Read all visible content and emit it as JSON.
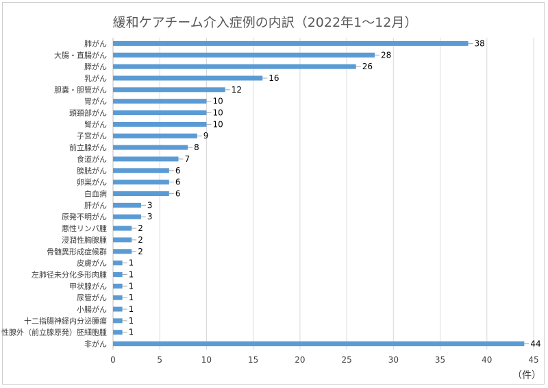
{
  "chart_data": {
    "type": "bar",
    "orientation": "horizontal",
    "title": "緩和ケアチーム介入症例の内訳（2022年1～12月）",
    "unit_label": "（件）",
    "categories": [
      "肺がん",
      "大腸・直腸がん",
      "膵がん",
      "乳がん",
      "胆嚢・胆管がん",
      "胃がん",
      "頭頚部がん",
      "腎がん",
      "子宮がん",
      "前立腺がん",
      "食道がん",
      "膀胱がん",
      "卵巣がん",
      "白血病",
      "肝がん",
      "原発不明がん",
      "悪性リンパ腫",
      "浸潤性胸腺腫",
      "骨髄異形成症候群",
      "皮膚がん",
      "左肺径未分化多形肉腫",
      "甲状腺がん",
      "尿管がん",
      "小腸がん",
      "十二指腸神経内分泌腫瘍",
      "性腺外（前立腺原発）胚細胞腫",
      "非がん"
    ],
    "values": [
      38,
      28,
      26,
      16,
      12,
      10,
      10,
      10,
      9,
      8,
      7,
      6,
      6,
      6,
      3,
      3,
      2,
      2,
      2,
      1,
      1,
      1,
      1,
      1,
      1,
      1,
      44
    ],
    "xlim": [
      0,
      45
    ],
    "xticks": [
      0,
      5,
      10,
      15,
      20,
      25,
      30,
      35,
      40,
      45
    ],
    "bar_color": "#5b9bd5",
    "grid": true,
    "legend": "none"
  }
}
